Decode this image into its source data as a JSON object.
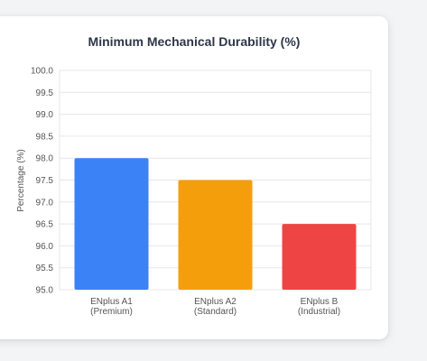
{
  "chart_data": {
    "type": "bar",
    "title": "Minimum Mechanical Durability (%)",
    "ylabel": "Percentage (%)",
    "xlabel": "",
    "ylim": [
      95.0,
      100.0
    ],
    "yticks": [
      "95.0",
      "95.5",
      "96.0",
      "96.5",
      "97.0",
      "97.5",
      "98.0",
      "98.5",
      "99.0",
      "99.5",
      "100.0"
    ],
    "categories": [
      [
        "ENplus A1",
        "(Premium)"
      ],
      [
        "ENplus A2",
        "(Standard)"
      ],
      [
        "ENplus B",
        "(Industrial)"
      ]
    ],
    "values": [
      98.0,
      97.5,
      96.5
    ],
    "colors": [
      "#3b82f6",
      "#f59e0b",
      "#ef4444"
    ],
    "grid": true,
    "legend": "none"
  }
}
